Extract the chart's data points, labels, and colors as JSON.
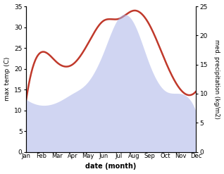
{
  "months": [
    "Jan",
    "Feb",
    "Mar",
    "Apr",
    "May",
    "Jun",
    "Jul",
    "Aug",
    "Sep",
    "Oct",
    "Nov",
    "Dec"
  ],
  "temp_C": [
    12.5,
    24.0,
    21.5,
    21.0,
    26.0,
    31.5,
    32.0,
    34.0,
    30.5,
    22.0,
    15.0,
    14.5
  ],
  "precip_kg": [
    9.0,
    8.0,
    8.5,
    10.0,
    12.0,
    17.0,
    23.0,
    22.0,
    15.0,
    10.5,
    10.0,
    7.0
  ],
  "temp_color": "#c0392b",
  "precip_color": "#aab4e8",
  "precip_fill_alpha": 0.55,
  "left_ylim": [
    0,
    35
  ],
  "right_ylim": [
    0,
    25
  ],
  "left_yticks": [
    0,
    5,
    10,
    15,
    20,
    25,
    30,
    35
  ],
  "right_yticks": [
    0,
    5,
    10,
    15,
    20,
    25
  ],
  "xlabel": "date (month)",
  "ylabel_left": "max temp (C)",
  "ylabel_right": "med. precipitation (kg/m2)",
  "bg_color": "#ffffff",
  "line_width": 1.8,
  "figsize": [
    3.18,
    2.47
  ],
  "dpi": 100
}
